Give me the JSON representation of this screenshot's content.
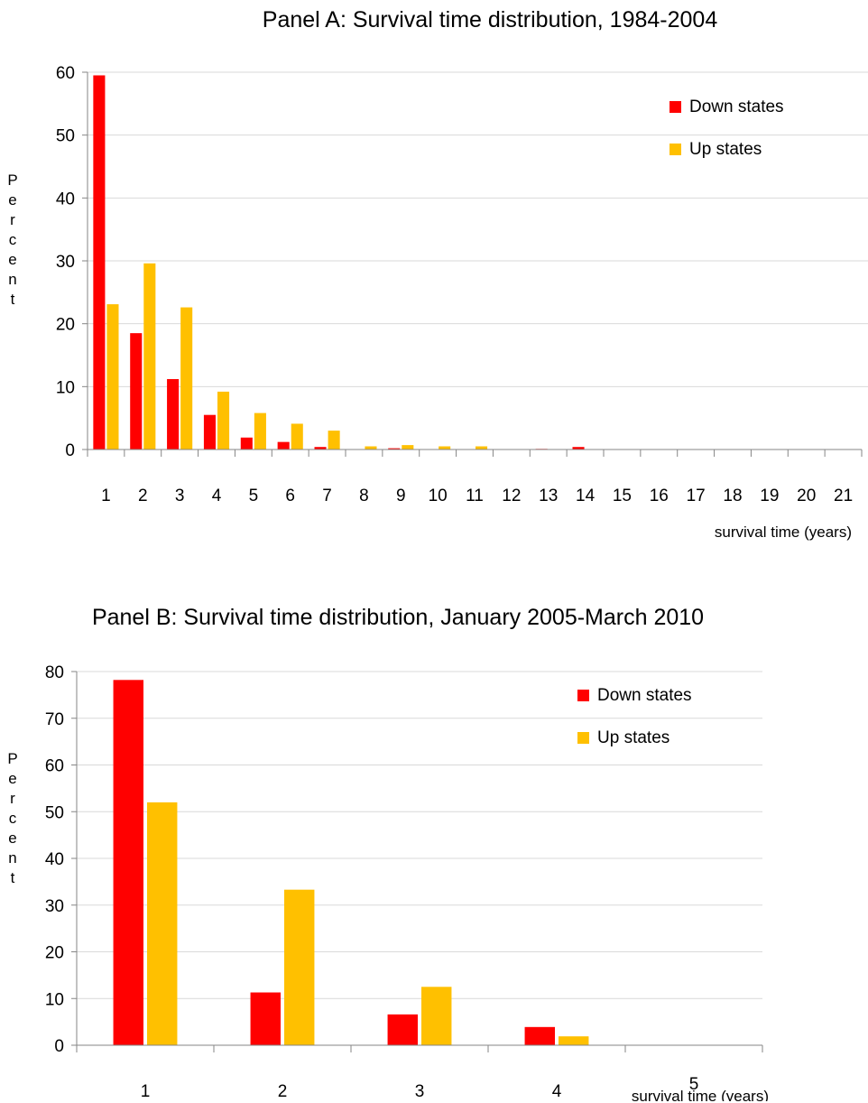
{
  "chart_data": [
    {
      "type": "bar",
      "title": "Panel A: Survival time distribution,  1984-2004",
      "xlabel": "survival time  (years)",
      "ylabel": "Percent",
      "ylim": [
        0,
        60
      ],
      "yticks": [
        0,
        10,
        20,
        30,
        40,
        50,
        60
      ],
      "grid": true,
      "legend_position": "top-right",
      "categories": [
        "1",
        "2",
        "3",
        "4",
        "5",
        "6",
        "7",
        "8",
        "9",
        "10",
        "11",
        "12",
        "13",
        "14",
        "15",
        "16",
        "17",
        "18",
        "19",
        "20",
        "21"
      ],
      "series": [
        {
          "name": "Down states",
          "color": "#ff0000",
          "values": [
            59.5,
            18.5,
            11.2,
            5.5,
            1.9,
            1.2,
            0.4,
            0.0,
            0.2,
            0.0,
            0.0,
            0.0,
            0.1,
            0.4,
            0.0,
            0.0,
            0.0,
            0.0,
            0.0,
            0.0,
            0.0
          ]
        },
        {
          "name": "Up states",
          "color": "#ffc000",
          "values": [
            23.1,
            29.6,
            22.6,
            9.2,
            5.8,
            4.1,
            3.0,
            0.5,
            0.7,
            0.5,
            0.5,
            0.0,
            0.0,
            0.0,
            0.0,
            0.0,
            0.0,
            0.0,
            0.0,
            0.0,
            0.0
          ]
        }
      ]
    },
    {
      "type": "bar",
      "title": "Panel B: Survival time distribution,  January 2005-March 2010",
      "xlabel": "survival time  (years)",
      "ylabel": "Percent",
      "ylim": [
        0,
        80
      ],
      "yticks": [
        0,
        10,
        20,
        30,
        40,
        50,
        60,
        70,
        80
      ],
      "grid": true,
      "legend_position": "top-right",
      "categories": [
        "1",
        "2",
        "3",
        "4",
        "5"
      ],
      "series": [
        {
          "name": "Down states",
          "color": "#ff0000",
          "values": [
            78.2,
            11.3,
            6.6,
            3.9,
            0.0
          ]
        },
        {
          "name": "Up states",
          "color": "#ffc000",
          "values": [
            52.0,
            33.3,
            12.5,
            1.9,
            0.0
          ]
        }
      ]
    }
  ]
}
